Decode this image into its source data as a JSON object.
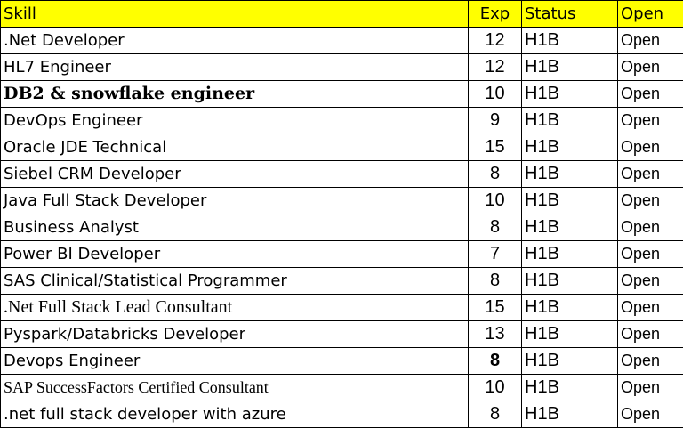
{
  "header": {
    "skill": "Skill",
    "exp": "Exp",
    "status": "Status",
    "availability": "Open"
  },
  "rows": [
    {
      "skill": ".Net Developer",
      "exp": "12",
      "status": "H1B",
      "availability": "Open"
    },
    {
      "skill": "HL7 Engineer",
      "exp": "12",
      "status": "H1B",
      "availability": "Open"
    },
    {
      "skill": "DB2 & snowflake engineer",
      "exp": "10",
      "status": "H1B",
      "availability": "Open"
    },
    {
      "skill": "DevOps Engineer",
      "exp": "9",
      "status": "H1B",
      "availability": "Open"
    },
    {
      "skill": "Oracle JDE Technical",
      "exp": "15",
      "status": "H1B",
      "availability": "Open"
    },
    {
      "skill": "Siebel CRM Developer",
      "exp": "8",
      "status": "H1B",
      "availability": "Open"
    },
    {
      "skill": "Java Full Stack Developer",
      "exp": "10",
      "status": "H1B",
      "availability": "Open"
    },
    {
      "skill": "Business Analyst",
      "exp": "8",
      "status": "H1B",
      "availability": "Open"
    },
    {
      "skill": "Power BI Developer",
      "exp": "7",
      "status": "H1B",
      "availability": "Open"
    },
    {
      "skill": "SAS Clinical/Statistical Programmer",
      "exp": "8",
      "status": "H1B",
      "availability": "Open"
    },
    {
      "skill": ".Net Full Stack Lead Consultant",
      "exp": "15",
      "status": "H1B",
      "availability": "Open"
    },
    {
      "skill": "Pyspark/Databricks Developer",
      "exp": "13",
      "status": "H1B",
      "availability": "Open"
    },
    {
      "skill": "Devops Engineer",
      "exp": "8",
      "status": "H1B",
      "availability": "Open"
    },
    {
      "skill": "SAP SuccessFactors Certified Consultant",
      "exp": "10",
      "status": "H1B",
      "availability": "Open"
    },
    {
      "skill": ".net full stack developer with azure",
      "exp": "8",
      "status": "H1B",
      "availability": "Open"
    }
  ],
  "colors": {
    "header_background": "#ffff00",
    "border": "#000000",
    "text": "#000000"
  }
}
